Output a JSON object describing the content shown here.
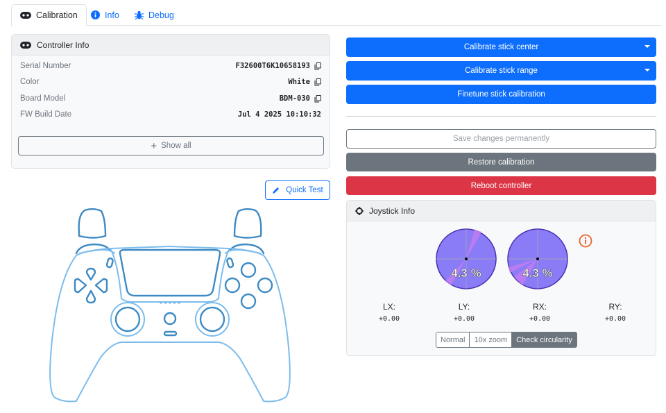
{
  "tabs": [
    {
      "label": "Calibration",
      "icon": "gamepad-icon"
    },
    {
      "label": "Info",
      "icon": "info-circle-icon"
    },
    {
      "label": "Debug",
      "icon": "bug-icon"
    }
  ],
  "controller_info": {
    "title": "Controller Info",
    "rows": [
      {
        "label": "Serial Number",
        "value": "F32600T6K10658193",
        "copy": true
      },
      {
        "label": "Color",
        "value": "White",
        "copy": true
      },
      {
        "label": "Board Model",
        "value": "BDM-030",
        "copy": true
      },
      {
        "label": "FW Build Date",
        "value": "Jul 4 2025 10:10:32",
        "copy": false
      }
    ],
    "show_all": "Show all"
  },
  "quick_test": "Quick Test",
  "actions": {
    "calibrate_center": "Calibrate stick center",
    "calibrate_range": "Calibrate stick range",
    "finetune": "Finetune stick calibration",
    "save": "Save changes permanently",
    "restore": "Restore calibration",
    "reboot": "Reboot controller"
  },
  "joystick": {
    "title": "Joystick Info",
    "left_pct": "4.3 %",
    "right_pct": "4.3 %",
    "axes": [
      {
        "label": "LX:",
        "value": "+0.00"
      },
      {
        "label": "LY:",
        "value": "+0.00"
      },
      {
        "label": "RX:",
        "value": "+0.00"
      },
      {
        "label": "RY:",
        "value": "+0.00"
      }
    ],
    "modes": [
      "Normal",
      "10x zoom",
      "Check circularity"
    ],
    "selected_mode": "Check circularity"
  },
  "colors": {
    "primary": "#0d6efd",
    "secondary": "#6c757d",
    "danger": "#dc3545",
    "warning": "#e8632b"
  }
}
